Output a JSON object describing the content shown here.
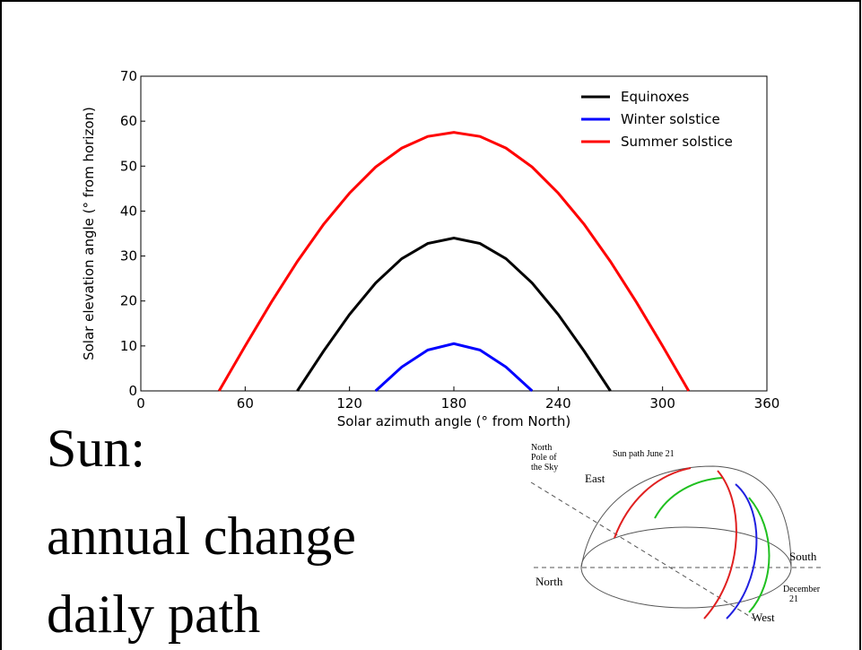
{
  "chart_data": {
    "type": "line",
    "xlabel": "Solar azimuth angle (° from North)",
    "ylabel": "Solar elevation angle (° from horizon)",
    "xlim": [
      0,
      360
    ],
    "ylim": [
      0,
      70
    ],
    "xticks": [
      0,
      60,
      120,
      180,
      240,
      300,
      360
    ],
    "yticks": [
      0,
      10,
      20,
      30,
      40,
      50,
      60,
      70
    ],
    "legend": "upper right",
    "series": [
      {
        "name": "Equinoxes",
        "color": "#000000",
        "x": [
          90,
          105,
          120,
          135,
          150,
          165,
          180,
          195,
          210,
          225,
          240,
          255,
          270
        ],
        "values": [
          0,
          8.8,
          17,
          24,
          29.4,
          32.8,
          34,
          32.8,
          29.4,
          24,
          17,
          8.8,
          0
        ]
      },
      {
        "name": "Winter solstice",
        "color": "#0000ff",
        "x": [
          135,
          150,
          165,
          180,
          195,
          210,
          225
        ],
        "values": [
          0,
          5.3,
          9.1,
          10.5,
          9.1,
          5.3,
          0
        ]
      },
      {
        "name": "Summer solstice",
        "color": "#ff0000",
        "x": [
          45,
          60,
          75,
          90,
          105,
          120,
          135,
          150,
          165,
          180,
          195,
          210,
          225,
          240,
          255,
          270,
          285,
          300,
          315
        ],
        "values": [
          0,
          10,
          19.7,
          28.8,
          37,
          44,
          49.8,
          54,
          56.6,
          57.5,
          56.6,
          54,
          49.8,
          44,
          37,
          28.8,
          19.7,
          10,
          0
        ]
      }
    ]
  },
  "heading": [
    "Sun:",
    "annual change",
    "daily path"
  ],
  "diagram": {
    "north_pole": [
      "North",
      "Pole of",
      "the Sky"
    ],
    "sun_path": "Sun path June 21",
    "east": "East",
    "south": "South",
    "north": "North",
    "december": [
      "December",
      "21"
    ],
    "west": "West"
  }
}
